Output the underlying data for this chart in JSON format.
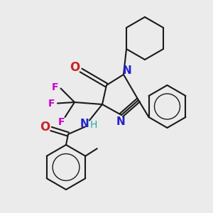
{
  "background_color": "#ebebeb",
  "bond_color": "#1a1a1a",
  "nitrogen_color": "#2222cc",
  "oxygen_color": "#cc2222",
  "fluorine_color": "#cc00cc",
  "nh_color": "#22aaaa",
  "figsize": [
    3.0,
    3.0
  ],
  "dpi": 100,
  "xlim": [
    0,
    10
  ],
  "ylim": [
    0,
    10
  ]
}
